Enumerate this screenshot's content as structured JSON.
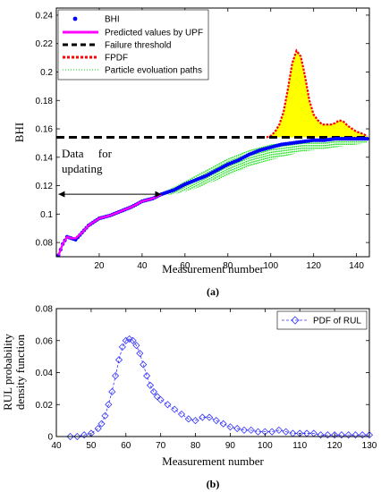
{
  "chart_data": [
    {
      "panel_label": "(a)",
      "type": "line",
      "xlabel": "Measurement number",
      "ylabel": "BHI",
      "xlim": [
        0,
        146
      ],
      "ylim": [
        0.07,
        0.245
      ],
      "xticks": [
        20,
        40,
        60,
        80,
        100,
        120,
        140
      ],
      "yticks": [
        0.08,
        0.1,
        0.12,
        0.14,
        0.16,
        0.18,
        0.2,
        0.22,
        0.24
      ],
      "legend_position": "top-left",
      "legend": [
        "BHI",
        "Predicted values by UPF",
        "Failure threshold",
        "FPDF",
        "Particle evoluation paths"
      ],
      "annotation": {
        "text_line1": "Data     for",
        "text_line2": "updating",
        "arrow_from_x": 1,
        "arrow_to_x": 49,
        "arrow_y": 0.114
      },
      "series": [
        {
          "name": "BHI",
          "style": "points",
          "color": "#0000ff",
          "x": [
            1,
            3,
            5,
            7,
            9,
            12,
            15,
            18,
            20,
            25,
            30,
            35,
            40,
            45,
            49,
            55,
            60,
            65,
            70,
            75,
            80,
            85,
            90,
            95,
            100,
            105,
            110,
            115,
            120,
            125,
            130,
            135,
            140,
            145
          ],
          "y": [
            0.071,
            0.079,
            0.084,
            0.083,
            0.082,
            0.087,
            0.092,
            0.095,
            0.097,
            0.099,
            0.102,
            0.105,
            0.109,
            0.111,
            0.114,
            0.117,
            0.121,
            0.124,
            0.127,
            0.131,
            0.135,
            0.138,
            0.142,
            0.145,
            0.147,
            0.149,
            0.15,
            0.151,
            0.152,
            0.152,
            0.153,
            0.153,
            0.153,
            0.153
          ]
        },
        {
          "name": "Predicted values by UPF",
          "style": "line",
          "color": "#ff00ff",
          "x": [
            1,
            3,
            5,
            7,
            9,
            12,
            15,
            18,
            20,
            25,
            30,
            35,
            40,
            45,
            49
          ],
          "y": [
            0.071,
            0.079,
            0.084,
            0.083,
            0.083,
            0.087,
            0.092,
            0.095,
            0.097,
            0.099,
            0.102,
            0.105,
            0.109,
            0.111,
            0.114
          ]
        },
        {
          "name": "Failure threshold",
          "style": "dashed",
          "color": "#000000",
          "x": [
            0,
            146
          ],
          "y": [
            0.154,
            0.154
          ]
        },
        {
          "name": "FPDF",
          "style": "dotted-filled",
          "color": "#ff0000",
          "fill": "#ffff00",
          "x": [
            98,
            100,
            102,
            104,
            106,
            108,
            110,
            112,
            114,
            116,
            118,
            120,
            122,
            124,
            126,
            128,
            130,
            132,
            134,
            136,
            138,
            140,
            142,
            145
          ],
          "y": [
            0.154,
            0.155,
            0.158,
            0.163,
            0.172,
            0.188,
            0.206,
            0.215,
            0.211,
            0.197,
            0.18,
            0.17,
            0.166,
            0.163,
            0.163,
            0.163,
            0.164,
            0.166,
            0.165,
            0.162,
            0.16,
            0.158,
            0.157,
            0.155
          ]
        },
        {
          "name": "Particle evoluation paths",
          "style": "band",
          "color": "#00dd00",
          "x": [
            49,
            55,
            60,
            65,
            70,
            75,
            80,
            85,
            90,
            95,
            100,
            105,
            110,
            115,
            120,
            125,
            130,
            135,
            140,
            145
          ],
          "upper": [
            0.115,
            0.119,
            0.123,
            0.127,
            0.131,
            0.135,
            0.139,
            0.142,
            0.145,
            0.147,
            0.149,
            0.15,
            0.151,
            0.152,
            0.152,
            0.152,
            0.153,
            0.153,
            0.153,
            0.153
          ],
          "lower": [
            0.113,
            0.114,
            0.116,
            0.118,
            0.121,
            0.124,
            0.127,
            0.13,
            0.133,
            0.136,
            0.138,
            0.14,
            0.142,
            0.144,
            0.145,
            0.146,
            0.147,
            0.148,
            0.149,
            0.15
          ]
        }
      ]
    },
    {
      "panel_label": "(b)",
      "type": "line",
      "xlabel": "Measurement number",
      "ylabel_line1": "RUL probability",
      "ylabel_line2": "density function",
      "xlim": [
        40,
        130
      ],
      "ylim": [
        0,
        0.08
      ],
      "xticks": [
        40,
        50,
        60,
        70,
        80,
        90,
        100,
        110,
        120,
        130
      ],
      "yticks": [
        0,
        0.02,
        0.04,
        0.06,
        0.08
      ],
      "legend_position": "top-right",
      "legend": [
        "PDF of RUL"
      ],
      "series": [
        {
          "name": "PDF of RUL",
          "style": "dashed-diamonds",
          "color": "#3333ff",
          "x": [
            44,
            46,
            48,
            50,
            52,
            53,
            54,
            55,
            56,
            57,
            58,
            59,
            60,
            61,
            62,
            63,
            64,
            65,
            66,
            67,
            68,
            69,
            70,
            72,
            74,
            76,
            78,
            80,
            82,
            84,
            86,
            88,
            90,
            92,
            94,
            96,
            98,
            100,
            102,
            104,
            106,
            108,
            110,
            112,
            114,
            116,
            118,
            120,
            122,
            124,
            126,
            128,
            130
          ],
          "y": [
            0.0,
            0.0,
            0.001,
            0.002,
            0.005,
            0.008,
            0.013,
            0.02,
            0.028,
            0.038,
            0.048,
            0.056,
            0.06,
            0.061,
            0.06,
            0.057,
            0.052,
            0.045,
            0.038,
            0.032,
            0.028,
            0.025,
            0.023,
            0.02,
            0.017,
            0.014,
            0.011,
            0.01,
            0.012,
            0.012,
            0.01,
            0.008,
            0.006,
            0.005,
            0.004,
            0.004,
            0.003,
            0.003,
            0.003,
            0.004,
            0.003,
            0.002,
            0.002,
            0.002,
            0.002,
            0.001,
            0.001,
            0.001,
            0.001,
            0.001,
            0.001,
            0.001,
            0.001
          ]
        }
      ]
    }
  ]
}
